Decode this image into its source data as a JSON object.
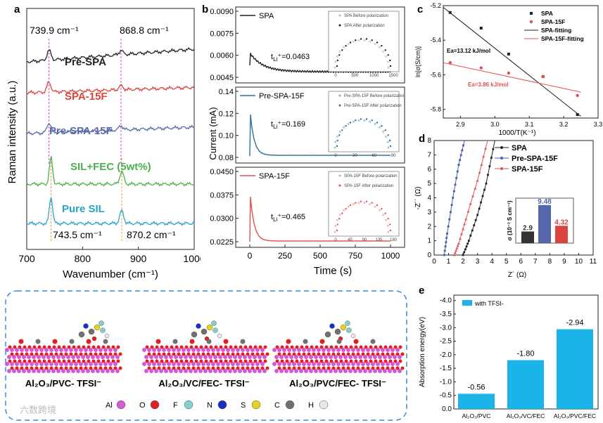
{
  "panel_labels": {
    "a": "a",
    "b": "b",
    "c": "c",
    "d": "d",
    "e": "e"
  },
  "chart_data": [
    {
      "panel": "a",
      "type": "line",
      "xlabel": "Wavenumber (cm⁻¹)",
      "ylabel": "Raman intensity (a.u.)",
      "xlim": [
        700,
        1000
      ],
      "xticks": [
        700,
        800,
        900,
        1000
      ],
      "annotations": [
        "739.9 cm⁻¹",
        "868.8 cm⁻¹",
        "743.5 cm⁻¹",
        "870.2 cm⁻¹"
      ],
      "series": [
        {
          "name": "Pre-SPA",
          "color": "#222222",
          "peaks": [
            739.9,
            868.8
          ]
        },
        {
          "name": "SPA-15F",
          "color": "#d9453e",
          "peaks": [
            739.9,
            868.8
          ]
        },
        {
          "name": "Pre-SPA-15F",
          "color": "#5a6aa8",
          "peaks": [
            739.9,
            868.8
          ]
        },
        {
          "name": "SIL+FEC (5wt%)",
          "color": "#4caf50",
          "peaks": [
            743.5,
            870.2
          ]
        },
        {
          "name": "Pure SIL",
          "color": "#2aa3c9",
          "peaks": [
            743.5,
            870.2
          ]
        }
      ]
    },
    {
      "panel": "b",
      "type": "line",
      "xlabel": "Time (s)",
      "ylabel": "Current (mA)",
      "xlim": [
        -100,
        1100
      ],
      "xticks": [
        0,
        250,
        500,
        750,
        1000
      ],
      "subplots": [
        {
          "name": "SPA",
          "t_li": "tₗᵢ⁺=0.0463",
          "ylim": [
            0.004,
            0.009
          ],
          "yticks": [
            "0.0090",
            "0.0075",
            "0.0060",
            "0.0045"
          ],
          "color": "#222222",
          "inset": [
            "SPA\nBefore polarization",
            "SPA\nAfter polarization"
          ],
          "inset_ticks": [
            "0",
            "500",
            "1000",
            "1500"
          ],
          "inset_yticks": [
            "0",
            "500",
            "1000",
            "1500"
          ]
        },
        {
          "name": "Pre-SPA-15F",
          "t_li": "0.169",
          "ylim": [
            0.07,
            0.145
          ],
          "yticks": [
            "0.14",
            "0.12",
            "0.10",
            "0.08"
          ],
          "color": "#2e6f9c",
          "inset": [
            "Pre-SPA-15F\nBefore polarization",
            "Pre-SPA-15F\nAfter polarization"
          ],
          "inset_ticks": [
            "0",
            "30",
            "60",
            "90"
          ],
          "inset_yticks": [
            "0",
            "15",
            "30",
            "45",
            "60"
          ]
        },
        {
          "name": "SPA-15F",
          "t_li": "0.465",
          "ylim": [
            0.021,
            0.047
          ],
          "yticks": [
            "0.0450",
            "0.0375",
            "0.0300",
            "0.0225"
          ],
          "color": "#e05252",
          "inset": [
            "SPA-15F\nBefore polarization",
            "SPA-15F\nAfter polarization"
          ],
          "inset_ticks": [
            "0",
            "45",
            "90",
            "135",
            "180"
          ],
          "inset_yticks": [
            "0",
            "45",
            "90",
            "135",
            "180"
          ]
        }
      ]
    },
    {
      "panel": "c",
      "type": "scatter",
      "xlabel": "1000/T(K⁻¹)",
      "ylabel": "ln[σ(S/cm)]",
      "xlim": [
        2.85,
        3.3
      ],
      "ylim": [
        -5.85,
        -5.2
      ],
      "xticks": [
        2.9,
        3.0,
        3.1,
        3.2,
        3.3
      ],
      "yticks": [
        -5.2,
        -5.4,
        -5.6,
        -5.8
      ],
      "legend": [
        "SPA",
        "SPA-15F",
        "SPA-fitting",
        "SPA-15F-fitting"
      ],
      "series": [
        {
          "name": "SPA",
          "color": "#222222",
          "x": [
            2.87,
            2.96,
            3.04,
            3.14,
            3.24
          ],
          "y": [
            -5.24,
            -5.33,
            -5.48,
            -5.61,
            -5.83
          ]
        },
        {
          "name": "SPA-15F",
          "color": "#e05252",
          "x": [
            2.87,
            2.96,
            3.04,
            3.14,
            3.24
          ],
          "y": [
            -5.53,
            -5.56,
            -5.59,
            -5.61,
            -5.72
          ]
        }
      ],
      "fits": [
        {
          "x": [
            2.85,
            3.25
          ],
          "y": [
            -5.21,
            -5.84
          ],
          "color": "#222222"
        },
        {
          "x": [
            2.85,
            3.25
          ],
          "y": [
            -5.53,
            -5.7
          ],
          "color": "#e05252"
        }
      ],
      "annotations": [
        "Ea=13.12 kJ/mol",
        "Ea=3.86 kJ/mol"
      ]
    },
    {
      "panel": "d",
      "type": "line",
      "xlabel": "Z´ (Ω)",
      "ylabel": "-Z´´ (Ω)",
      "xlim": [
        0,
        11
      ],
      "ylim": [
        0,
        8
      ],
      "xticks": [
        0,
        1,
        2,
        3,
        4,
        5,
        6,
        7,
        8,
        9,
        10,
        11
      ],
      "yticks": [
        0,
        1,
        2,
        3,
        4,
        5,
        6,
        7,
        8
      ],
      "legend": [
        "SPA",
        "Pre-SPA-15F",
        "SPA-15F"
      ],
      "series": [
        {
          "name": "SPA",
          "color": "#222222",
          "x": [
            2.0,
            2.4,
            3.0,
            3.6,
            4.2
          ],
          "y": [
            0,
            1.0,
            2.8,
            5.0,
            8.0
          ]
        },
        {
          "name": "Pre-SPA-15F",
          "color": "#4a5eaa",
          "x": [
            0.7,
            0.9,
            1.3,
            1.7,
            2.1
          ],
          "y": [
            0,
            1.5,
            4.0,
            6.3,
            8.0
          ]
        },
        {
          "name": "SPA-15F",
          "color": "#e05252",
          "x": [
            1.4,
            1.7,
            2.2,
            3.0,
            3.7
          ],
          "y": [
            0,
            0.8,
            2.5,
            5.2,
            8.0
          ]
        }
      ],
      "inset": {
        "type": "bar",
        "ylabel": "σ (10⁻³ S cm⁻¹)",
        "values": [
          2.9,
          9.48,
          4.32
        ],
        "labels": [
          "2.9",
          "9.48",
          "4.32"
        ],
        "colors": [
          "#333333",
          "#5566aa",
          "#d9453e"
        ]
      }
    },
    {
      "panel": "e",
      "type": "bar",
      "ylabel": "Absorption energy(eV)",
      "categories": [
        "Al₂O₃/PVC",
        "Al₂O₃/VC/FEC",
        "Al₂O₃/PVC/FEC"
      ],
      "values": [
        -0.56,
        -1.8,
        -2.94
      ],
      "labels": [
        "-0.56",
        "-1.80",
        "-2.94"
      ],
      "ylim": [
        0,
        -4.2
      ],
      "yticks": [
        "-4.0",
        "-3.5",
        "-3.0",
        "-2.5",
        "-2.0",
        "-1.5",
        "-1.0",
        "-0.5",
        "0.0"
      ],
      "legend": [
        "with TFSI-"
      ],
      "color": "#1ab4e8"
    }
  ],
  "structures": {
    "labels": [
      "Al₂O₃/PVC- TFSI⁻",
      "Al₂O₃/VC/FEC- TFSI⁻",
      "Al₂O₃/PVC/FEC- TFSI⁻"
    ],
    "legend": [
      {
        "sym": "Al",
        "color": "#d25ad8"
      },
      {
        "sym": "O",
        "color": "#e02020"
      },
      {
        "sym": "F",
        "color": "#7fd0d0"
      },
      {
        "sym": "N",
        "color": "#1830c0"
      },
      {
        "sym": "S",
        "color": "#e8d020"
      },
      {
        "sym": "C",
        "color": "#707070"
      },
      {
        "sym": "H",
        "color": "#e8e8e8"
      }
    ]
  },
  "watermark": "六数跨境"
}
